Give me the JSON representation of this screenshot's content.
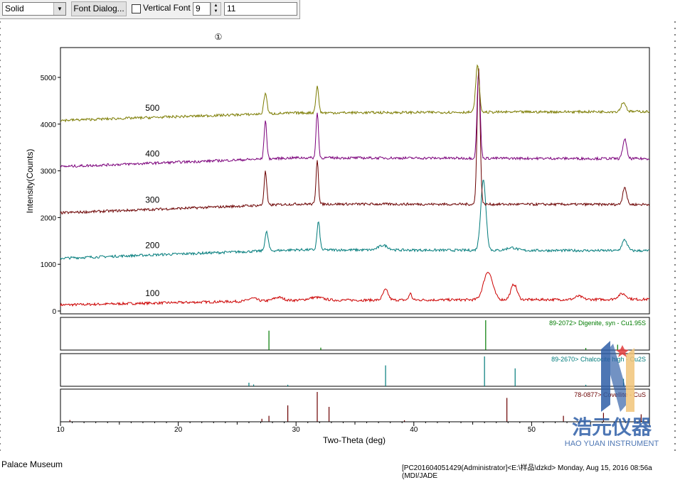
{
  "toolbar": {
    "line_style": "Solid",
    "font_button": "Font Dialog...",
    "vertical_font_label": "Vertical Font",
    "vertical_font_checked": false,
    "font_size": "9",
    "text_value": "11"
  },
  "panel_marker": "①",
  "chart_data": {
    "type": "line",
    "xlabel": "Two-Theta (deg)",
    "ylabel": "Intensity(Counts)",
    "xlim": [
      10,
      60
    ],
    "ylim": [
      0,
      5600
    ],
    "x_ticks": [
      10,
      20,
      30,
      40,
      50
    ],
    "y_ticks": [
      0,
      1000,
      2000,
      3000,
      4000,
      5000
    ],
    "series": [
      {
        "name": "100",
        "color": "#cc0000",
        "baseline": [
          [
            10,
            130
          ],
          [
            30,
            230
          ],
          [
            60,
            250
          ]
        ],
        "peaks": [
          [
            26.3,
            60,
            0.35
          ],
          [
            28.5,
            70,
            0.4
          ],
          [
            31.7,
            60,
            0.6
          ],
          [
            37.6,
            220,
            0.22
          ],
          [
            39.7,
            140,
            0.12
          ],
          [
            46.3,
            600,
            0.38
          ],
          [
            48.5,
            330,
            0.26
          ],
          [
            54.0,
            70,
            0.3
          ],
          [
            57.7,
            120,
            0.35
          ]
        ]
      },
      {
        "name": "200",
        "color": "#007b7b",
        "baseline": [
          [
            10,
            1130
          ],
          [
            30,
            1310
          ],
          [
            60,
            1290
          ]
        ],
        "peaks": [
          [
            27.5,
            400,
            0.14
          ],
          [
            31.9,
            600,
            0.12
          ],
          [
            37.4,
            100,
            0.4
          ],
          [
            45.9,
            1500,
            0.22
          ],
          [
            48.3,
            60,
            0.4
          ],
          [
            57.9,
            230,
            0.22
          ]
        ]
      },
      {
        "name": "300",
        "color": "#6b0000",
        "baseline": [
          [
            10,
            2100
          ],
          [
            30,
            2290
          ],
          [
            60,
            2280
          ]
        ],
        "peaks": [
          [
            27.4,
            720,
            0.11
          ],
          [
            31.8,
            960,
            0.1
          ],
          [
            45.5,
            2900,
            0.13
          ],
          [
            57.9,
            380,
            0.16
          ]
        ]
      },
      {
        "name": "400",
        "color": "#7b007b",
        "baseline": [
          [
            10,
            3090
          ],
          [
            30,
            3280
          ],
          [
            60,
            3260
          ]
        ],
        "peaks": [
          [
            27.4,
            820,
            0.11
          ],
          [
            31.8,
            990,
            0.1
          ],
          [
            45.5,
            1850,
            0.13
          ],
          [
            57.9,
            420,
            0.16
          ]
        ]
      },
      {
        "name": "500",
        "color": "#7b7b00",
        "baseline": [
          [
            10,
            4080
          ],
          [
            30,
            4240
          ],
          [
            60,
            4270
          ]
        ],
        "peaks": [
          [
            27.4,
            450,
            0.13
          ],
          [
            31.8,
            560,
            0.12
          ],
          [
            45.4,
            1000,
            0.15
          ],
          [
            57.8,
            200,
            0.2
          ]
        ]
      }
    ],
    "reference_patterns": [
      {
        "label": "89-2072> Digenite, syn - Cu1.95S",
        "color": "#007b00",
        "lines": [
          [
            27.7,
            0.65
          ],
          [
            32.1,
            0.08
          ],
          [
            46.1,
            1.0
          ],
          [
            54.6,
            0.07
          ],
          [
            57.3,
            0.18
          ]
        ]
      },
      {
        "label": "89-2670> Chalcocite high - Cu2S",
        "color": "#007b7b",
        "lines": [
          [
            26.0,
            0.12
          ],
          [
            26.4,
            0.06
          ],
          [
            29.3,
            0.05
          ],
          [
            37.6,
            0.7
          ],
          [
            46.0,
            1.0
          ],
          [
            48.6,
            0.6
          ],
          [
            54.6,
            0.05
          ],
          [
            57.8,
            0.25
          ]
        ]
      },
      {
        "label": "78-0877> Covellite - CuS",
        "color": "#6b0000",
        "lines": [
          [
            10.8,
            0.06
          ],
          [
            27.1,
            0.1
          ],
          [
            27.7,
            0.2
          ],
          [
            29.3,
            0.55
          ],
          [
            31.8,
            1.0
          ],
          [
            32.8,
            0.5
          ],
          [
            39.2,
            0.05
          ],
          [
            47.9,
            0.8
          ],
          [
            52.7,
            0.2
          ],
          [
            56.1,
            0.3
          ],
          [
            59.3,
            0.25
          ]
        ]
      }
    ]
  },
  "watermark": {
    "brand_cn": "浩元仪器",
    "brand_en": "HAO YUAN INSTRUMENT"
  },
  "status": {
    "left": "Palace Museum",
    "right": "[PC201604051429(Administrator]<E:\\样品\\dzkd> Monday, Aug 15, 2016 08:56a (MDI/JADE"
  }
}
